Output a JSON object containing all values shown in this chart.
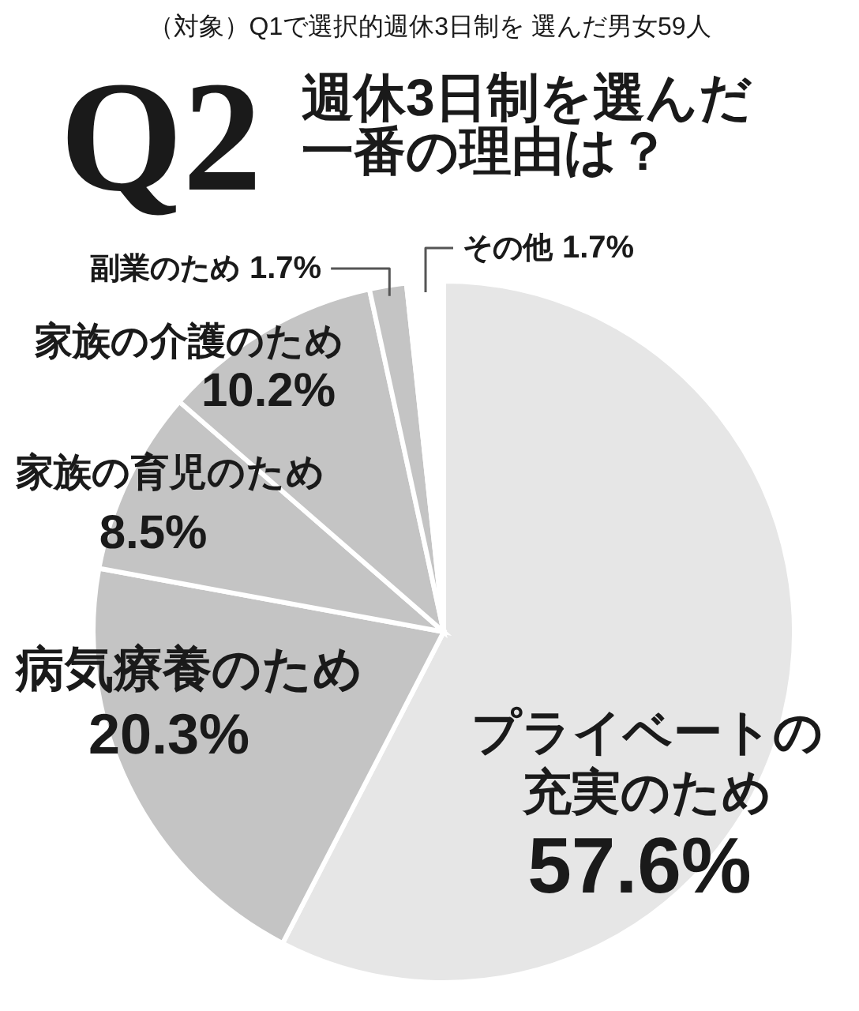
{
  "chart_data": {
    "type": "pie",
    "title": "Q2週休3日制を選んだ一番の理由は？",
    "subtitle": "（対象）Q1で選択的週休3日制を 選んだ男女59人",
    "categories": [
      "プライベートの充実のため",
      "病気療養のため",
      "家族の育児のため",
      "家族の介護のため",
      "副業のため",
      "その他"
    ],
    "values": [
      57.6,
      20.3,
      8.5,
      10.2,
      1.7,
      1.7
    ],
    "colors": [
      "#e6e6e6",
      "#c4c4c4",
      "#c4c4c4",
      "#c4c4c4",
      "#c4c4c4",
      "#ffffff"
    ],
    "value_labels": [
      "57.6%",
      "20.3%",
      "8.5%",
      "10.2%",
      "1.7%",
      "1.7%"
    ]
  }
}
